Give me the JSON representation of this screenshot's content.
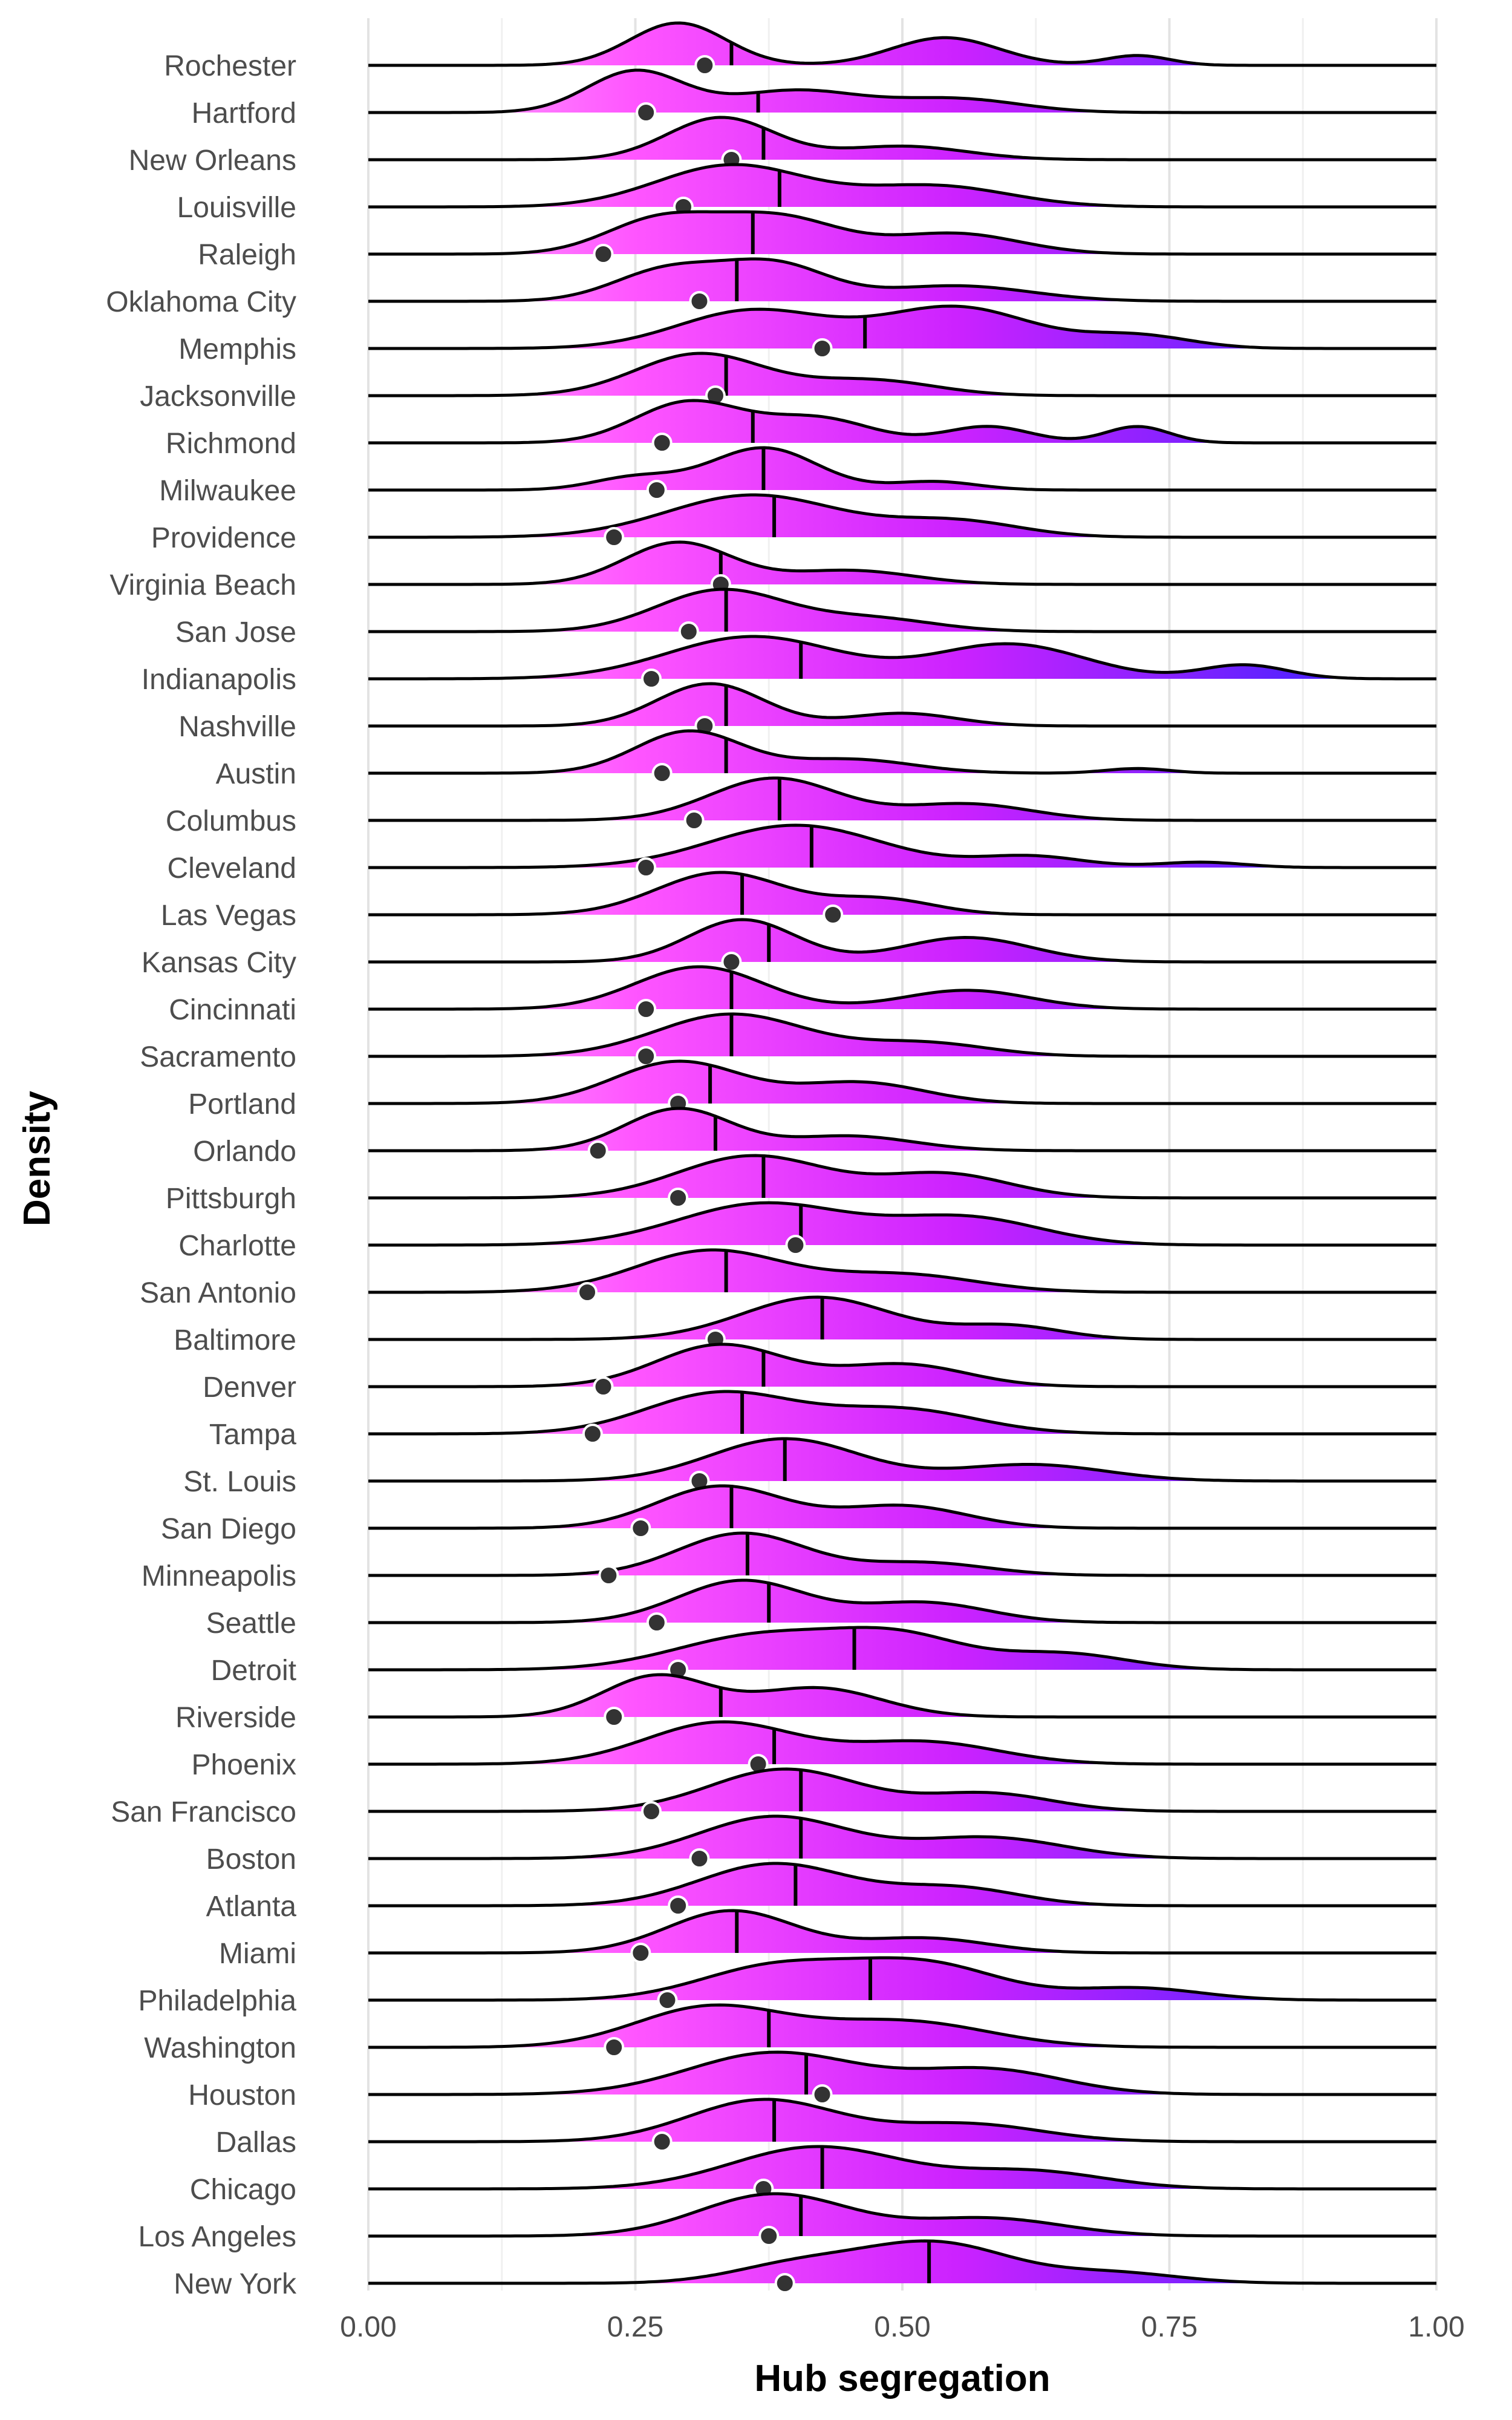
{
  "chart_data": {
    "type": "ridgeline",
    "xlabel": "Hub segregation",
    "ylabel": "Density",
    "xlim": [
      0,
      1
    ],
    "x_ticks": [
      "0.00",
      "0.25",
      "0.50",
      "0.75",
      "1.00"
    ],
    "x_minor_ticks": [
      0.125,
      0.375,
      0.625,
      0.875
    ],
    "grid": true,
    "gradient_colors": [
      "#ffb3ff",
      "#ff55ff",
      "#cc22ff",
      "#8822ff",
      "#2222ff"
    ],
    "cities": [
      {
        "name": "Rochester",
        "median": 0.34,
        "point": 0.315,
        "peaks": [
          [
            0.29,
            0.045,
            0.95
          ],
          [
            0.54,
            0.05,
            0.62
          ],
          [
            0.72,
            0.03,
            0.22
          ]
        ]
      },
      {
        "name": "Hartford",
        "median": 0.365,
        "point": 0.26,
        "peaks": [
          [
            0.25,
            0.045,
            0.85
          ],
          [
            0.4,
            0.06,
            0.45
          ],
          [
            0.55,
            0.06,
            0.28
          ]
        ]
      },
      {
        "name": "New Orleans",
        "median": 0.37,
        "point": 0.34,
        "peaks": [
          [
            0.33,
            0.05,
            1.0
          ],
          [
            0.5,
            0.06,
            0.32
          ]
        ]
      },
      {
        "name": "Louisville",
        "median": 0.385,
        "point": 0.295,
        "peaks": [
          [
            0.34,
            0.07,
            0.9
          ],
          [
            0.53,
            0.07,
            0.45
          ]
        ]
      },
      {
        "name": "Raleigh",
        "median": 0.36,
        "point": 0.22,
        "peaks": [
          [
            0.27,
            0.05,
            0.55
          ],
          [
            0.38,
            0.06,
            0.65
          ],
          [
            0.55,
            0.06,
            0.35
          ]
        ]
      },
      {
        "name": "Oklahoma City",
        "median": 0.345,
        "point": 0.31,
        "peaks": [
          [
            0.28,
            0.05,
            0.6
          ],
          [
            0.38,
            0.05,
            0.7
          ],
          [
            0.55,
            0.07,
            0.3
          ]
        ]
      },
      {
        "name": "Memphis",
        "median": 0.465,
        "point": 0.425,
        "peaks": [
          [
            0.36,
            0.07,
            0.6
          ],
          [
            0.55,
            0.07,
            0.65
          ],
          [
            0.72,
            0.05,
            0.2
          ]
        ]
      },
      {
        "name": "Jacksonville",
        "median": 0.335,
        "point": 0.325,
        "peaks": [
          [
            0.31,
            0.06,
            0.95
          ],
          [
            0.47,
            0.06,
            0.35
          ]
        ]
      },
      {
        "name": "Richmond",
        "median": 0.36,
        "point": 0.275,
        "peaks": [
          [
            0.3,
            0.05,
            0.75
          ],
          [
            0.42,
            0.05,
            0.45
          ],
          [
            0.58,
            0.04,
            0.3
          ],
          [
            0.72,
            0.03,
            0.3
          ]
        ]
      },
      {
        "name": "Milwaukee",
        "median": 0.37,
        "point": 0.27,
        "peaks": [
          [
            0.37,
            0.05,
            1.0
          ],
          [
            0.25,
            0.04,
            0.3
          ],
          [
            0.53,
            0.04,
            0.2
          ]
        ]
      },
      {
        "name": "Providence",
        "median": 0.38,
        "point": 0.23,
        "peaks": [
          [
            0.36,
            0.08,
            0.8
          ],
          [
            0.55,
            0.06,
            0.3
          ]
        ]
      },
      {
        "name": "Virginia Beach",
        "median": 0.33,
        "point": 0.33,
        "peaks": [
          [
            0.29,
            0.05,
            0.9
          ],
          [
            0.45,
            0.06,
            0.3
          ]
        ]
      },
      {
        "name": "San Jose",
        "median": 0.335,
        "point": 0.3,
        "peaks": [
          [
            0.33,
            0.06,
            0.95
          ],
          [
            0.47,
            0.06,
            0.3
          ]
        ]
      },
      {
        "name": "Indianapolis",
        "median": 0.405,
        "point": 0.265,
        "peaks": [
          [
            0.36,
            0.08,
            0.55
          ],
          [
            0.6,
            0.07,
            0.45
          ],
          [
            0.82,
            0.04,
            0.18
          ]
        ]
      },
      {
        "name": "Nashville",
        "median": 0.335,
        "point": 0.315,
        "peaks": [
          [
            0.32,
            0.05,
            1.0
          ],
          [
            0.5,
            0.05,
            0.3
          ]
        ]
      },
      {
        "name": "Austin",
        "median": 0.335,
        "point": 0.275,
        "peaks": [
          [
            0.3,
            0.05,
            0.9
          ],
          [
            0.45,
            0.06,
            0.3
          ],
          [
            0.72,
            0.03,
            0.1
          ]
        ]
      },
      {
        "name": "Columbus",
        "median": 0.385,
        "point": 0.305,
        "peaks": [
          [
            0.38,
            0.06,
            0.9
          ],
          [
            0.56,
            0.06,
            0.35
          ]
        ]
      },
      {
        "name": "Cleveland",
        "median": 0.415,
        "point": 0.26,
        "peaks": [
          [
            0.4,
            0.08,
            0.95
          ],
          [
            0.62,
            0.05,
            0.25
          ],
          [
            0.78,
            0.04,
            0.12
          ]
        ]
      },
      {
        "name": "Las Vegas",
        "median": 0.35,
        "point": 0.435,
        "peaks": [
          [
            0.33,
            0.06,
            0.95
          ],
          [
            0.48,
            0.05,
            0.35
          ]
        ]
      },
      {
        "name": "Kansas City",
        "median": 0.375,
        "point": 0.34,
        "peaks": [
          [
            0.35,
            0.05,
            0.95
          ],
          [
            0.56,
            0.06,
            0.55
          ]
        ]
      },
      {
        "name": "Cincinnati",
        "median": 0.34,
        "point": 0.26,
        "peaks": [
          [
            0.31,
            0.06,
            0.9
          ],
          [
            0.56,
            0.06,
            0.4
          ]
        ]
      },
      {
        "name": "Sacramento",
        "median": 0.34,
        "point": 0.26,
        "peaks": [
          [
            0.34,
            0.07,
            0.95
          ],
          [
            0.52,
            0.06,
            0.3
          ]
        ]
      },
      {
        "name": "Portland",
        "median": 0.32,
        "point": 0.29,
        "peaks": [
          [
            0.29,
            0.06,
            0.9
          ],
          [
            0.46,
            0.06,
            0.45
          ]
        ]
      },
      {
        "name": "Orlando",
        "median": 0.325,
        "point": 0.215,
        "peaks": [
          [
            0.29,
            0.05,
            1.0
          ],
          [
            0.45,
            0.06,
            0.35
          ]
        ]
      },
      {
        "name": "Pittsburgh",
        "median": 0.37,
        "point": 0.29,
        "peaks": [
          [
            0.36,
            0.07,
            0.8
          ],
          [
            0.54,
            0.06,
            0.45
          ]
        ]
      },
      {
        "name": "Charlotte",
        "median": 0.405,
        "point": 0.4,
        "peaks": [
          [
            0.37,
            0.08,
            0.85
          ],
          [
            0.56,
            0.07,
            0.55
          ]
        ]
      },
      {
        "name": "San Antonio",
        "median": 0.335,
        "point": 0.205,
        "peaks": [
          [
            0.32,
            0.07,
            0.95
          ],
          [
            0.5,
            0.07,
            0.4
          ]
        ]
      },
      {
        "name": "Baltimore",
        "median": 0.425,
        "point": 0.325,
        "peaks": [
          [
            0.42,
            0.07,
            0.95
          ],
          [
            0.6,
            0.05,
            0.3
          ]
        ]
      },
      {
        "name": "Denver",
        "median": 0.37,
        "point": 0.22,
        "peaks": [
          [
            0.33,
            0.06,
            0.85
          ],
          [
            0.5,
            0.06,
            0.45
          ]
        ]
      },
      {
        "name": "Tampa",
        "median": 0.35,
        "point": 0.21,
        "peaks": [
          [
            0.33,
            0.07,
            0.85
          ],
          [
            0.5,
            0.07,
            0.5
          ]
        ]
      },
      {
        "name": "St. Louis",
        "median": 0.39,
        "point": 0.31,
        "peaks": [
          [
            0.39,
            0.07,
            0.9
          ],
          [
            0.62,
            0.07,
            0.35
          ]
        ]
      },
      {
        "name": "San Diego",
        "median": 0.34,
        "point": 0.255,
        "peaks": [
          [
            0.33,
            0.06,
            0.85
          ],
          [
            0.5,
            0.06,
            0.45
          ]
        ]
      },
      {
        "name": "Minneapolis",
        "median": 0.355,
        "point": 0.225,
        "peaks": [
          [
            0.35,
            0.06,
            1.0
          ],
          [
            0.52,
            0.06,
            0.3
          ]
        ]
      },
      {
        "name": "Seattle",
        "median": 0.375,
        "point": 0.27,
        "peaks": [
          [
            0.35,
            0.06,
            0.95
          ],
          [
            0.52,
            0.06,
            0.45
          ]
        ]
      },
      {
        "name": "Detroit",
        "median": 0.455,
        "point": 0.29,
        "peaks": [
          [
            0.37,
            0.08,
            0.65
          ],
          [
            0.5,
            0.06,
            0.55
          ],
          [
            0.65,
            0.06,
            0.3
          ]
        ]
      },
      {
        "name": "Riverside",
        "median": 0.33,
        "point": 0.23,
        "peaks": [
          [
            0.27,
            0.05,
            0.85
          ],
          [
            0.42,
            0.06,
            0.6
          ]
        ]
      },
      {
        "name": "Phoenix",
        "median": 0.38,
        "point": 0.365,
        "peaks": [
          [
            0.33,
            0.07,
            0.85
          ],
          [
            0.52,
            0.07,
            0.45
          ]
        ]
      },
      {
        "name": "San Francisco",
        "median": 0.405,
        "point": 0.265,
        "peaks": [
          [
            0.39,
            0.07,
            0.95
          ],
          [
            0.58,
            0.06,
            0.4
          ]
        ]
      },
      {
        "name": "Boston",
        "median": 0.405,
        "point": 0.31,
        "peaks": [
          [
            0.38,
            0.07,
            0.9
          ],
          [
            0.58,
            0.07,
            0.45
          ]
        ]
      },
      {
        "name": "Atlanta",
        "median": 0.4,
        "point": 0.29,
        "peaks": [
          [
            0.38,
            0.07,
            0.95
          ],
          [
            0.55,
            0.06,
            0.4
          ]
        ]
      },
      {
        "name": "Miami",
        "median": 0.345,
        "point": 0.255,
        "peaks": [
          [
            0.34,
            0.06,
            1.0
          ],
          [
            0.52,
            0.06,
            0.35
          ]
        ]
      },
      {
        "name": "Philadelphia",
        "median": 0.47,
        "point": 0.28,
        "peaks": [
          [
            0.38,
            0.07,
            0.55
          ],
          [
            0.52,
            0.07,
            0.6
          ],
          [
            0.72,
            0.06,
            0.2
          ]
        ]
      },
      {
        "name": "Washington",
        "median": 0.375,
        "point": 0.23,
        "peaks": [
          [
            0.32,
            0.07,
            0.85
          ],
          [
            0.5,
            0.08,
            0.55
          ]
        ]
      },
      {
        "name": "Houston",
        "median": 0.41,
        "point": 0.425,
        "peaks": [
          [
            0.38,
            0.08,
            0.85
          ],
          [
            0.58,
            0.07,
            0.5
          ]
        ]
      },
      {
        "name": "Dallas",
        "median": 0.38,
        "point": 0.275,
        "peaks": [
          [
            0.37,
            0.07,
            0.95
          ],
          [
            0.56,
            0.07,
            0.4
          ]
        ]
      },
      {
        "name": "Chicago",
        "median": 0.425,
        "point": 0.37,
        "peaks": [
          [
            0.42,
            0.08,
            0.85
          ],
          [
            0.62,
            0.07,
            0.35
          ]
        ]
      },
      {
        "name": "Los Angeles",
        "median": 0.405,
        "point": 0.375,
        "peaks": [
          [
            0.38,
            0.07,
            0.95
          ],
          [
            0.58,
            0.07,
            0.4
          ]
        ]
      },
      {
        "name": "New York",
        "median": 0.525,
        "point": 0.39,
        "peaks": [
          [
            0.4,
            0.06,
            0.35
          ],
          [
            0.53,
            0.07,
            0.8
          ],
          [
            0.7,
            0.06,
            0.2
          ]
        ]
      }
    ]
  }
}
